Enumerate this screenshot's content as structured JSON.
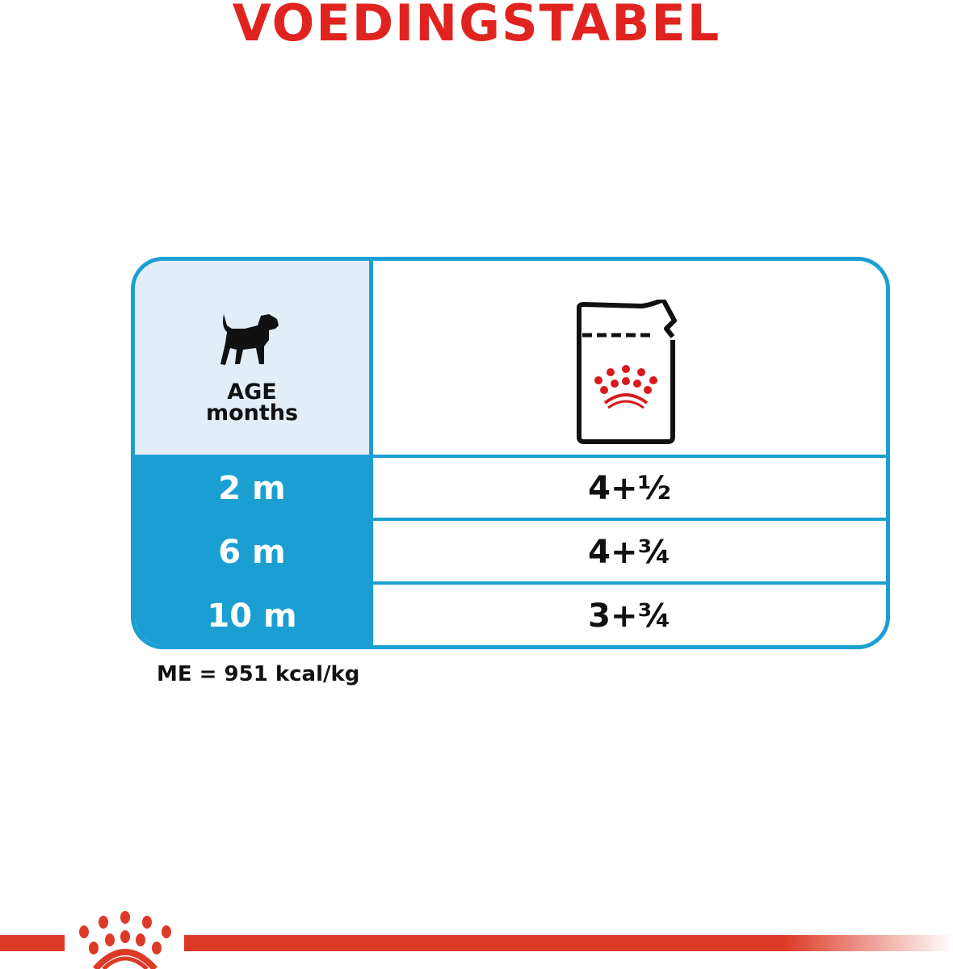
{
  "title": "VOEDINGSTABEL",
  "table": {
    "header": {
      "age_label_line1": "AGE",
      "age_label_line2": "months",
      "age_icon": "puppy-icon",
      "food_icon": "pouch-icon"
    },
    "rows": [
      {
        "age": "2 m",
        "amount": "4+½"
      },
      {
        "age": "6 m",
        "amount": "4+¾"
      },
      {
        "age": "10 m",
        "amount": "3+¾"
      }
    ]
  },
  "footnote": "ME = 951 kcal/kg",
  "colors": {
    "accent_red": "#e0231f",
    "table_blue": "#1b9fd2",
    "header_bg": "#e2edf8"
  },
  "logo": "royal-canin-crown"
}
